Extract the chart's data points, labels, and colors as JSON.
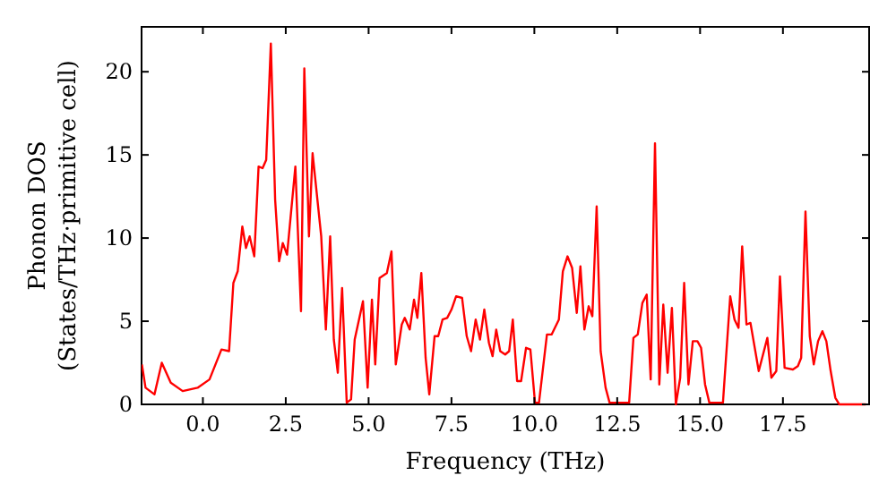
{
  "chart_data": {
    "type": "line",
    "xlabel": "Frequency (THz)",
    "ylabel": "Phonon DOS\n(States/THz·primitive cell)",
    "xlim": [
      -1.85,
      20.1
    ],
    "ylim": [
      0,
      22.7
    ],
    "xticks": [
      {
        "value": 0,
        "label": "0.0"
      },
      {
        "value": 2.5,
        "label": "2.5"
      },
      {
        "value": 5,
        "label": "5.0"
      },
      {
        "value": 7.5,
        "label": "7.5"
      },
      {
        "value": 10,
        "label": "10.0"
      },
      {
        "value": 12.5,
        "label": "12.5"
      },
      {
        "value": 15,
        "label": "15.0"
      },
      {
        "value": 17.5,
        "label": "17.5"
      }
    ],
    "yticks": [
      0,
      5,
      10,
      15,
      20
    ],
    "grid": false,
    "marker": "none",
    "line_style": "solid",
    "x": [
      -1.84,
      -1.73,
      -1.46,
      -1.24,
      -0.97,
      -0.61,
      -0.16,
      0.2,
      0.56,
      0.79,
      0.92,
      1.05,
      1.19,
      1.3,
      1.41,
      1.55,
      1.68,
      1.8,
      1.91,
      2.05,
      2.18,
      2.3,
      2.41,
      2.54,
      2.79,
      2.96,
      3.06,
      3.2,
      3.31,
      3.57,
      3.71,
      3.84,
      3.95,
      4.07,
      4.2,
      4.34,
      4.47,
      4.58,
      4.83,
      4.97,
      5.1,
      5.2,
      5.33,
      5.55,
      5.69,
      5.82,
      6.0,
      6.09,
      6.24,
      6.37,
      6.47,
      6.59,
      6.72,
      6.83,
      6.99,
      7.1,
      7.23,
      7.37,
      7.5,
      7.64,
      7.82,
      7.96,
      8.09,
      8.23,
      8.36,
      8.49,
      8.63,
      8.74,
      8.85,
      8.97,
      9.12,
      9.24,
      9.35,
      9.48,
      9.6,
      9.75,
      9.88,
      10.02,
      10.14,
      10.38,
      10.52,
      10.74,
      10.86,
      11.0,
      11.14,
      11.28,
      11.39,
      11.51,
      11.64,
      11.75,
      11.88,
      12.0,
      12.15,
      12.27,
      12.86,
      12.99,
      13.12,
      13.26,
      13.39,
      13.51,
      13.64,
      13.77,
      13.89,
      14.02,
      14.15,
      14.27,
      14.4,
      14.52,
      14.65,
      14.78,
      14.92,
      15.03,
      15.15,
      15.28,
      15.69,
      15.91,
      16.04,
      16.16,
      16.27,
      16.4,
      16.52,
      16.77,
      17.03,
      17.15,
      17.3,
      17.41,
      17.55,
      17.8,
      17.95,
      18.05,
      18.18,
      18.31,
      18.43,
      18.56,
      18.69,
      18.81,
      18.94,
      19.08,
      19.2,
      20.0
    ],
    "series": [
      {
        "color": "#ff0000",
        "values": [
          2.4,
          1.0,
          0.6,
          2.5,
          1.3,
          0.8,
          1.0,
          1.5,
          3.3,
          3.2,
          7.3,
          8.0,
          10.7,
          9.4,
          10.1,
          8.9,
          14.3,
          14.2,
          14.7,
          21.7,
          12.3,
          8.6,
          9.7,
          9.0,
          14.3,
          5.6,
          20.2,
          10.1,
          15.1,
          10.1,
          4.5,
          10.1,
          3.9,
          1.9,
          7.0,
          0.1,
          0.3,
          3.9,
          6.2,
          1.0,
          6.3,
          2.4,
          7.6,
          7.9,
          9.2,
          2.4,
          4.8,
          5.2,
          4.5,
          6.3,
          5.2,
          7.9,
          2.8,
          0.6,
          4.1,
          4.1,
          5.1,
          5.2,
          5.7,
          6.5,
          6.4,
          4.1,
          3.2,
          5.1,
          3.9,
          5.7,
          3.7,
          2.9,
          4.5,
          3.2,
          3.0,
          3.2,
          5.1,
          1.4,
          1.4,
          3.4,
          3.3,
          0.1,
          0.1,
          4.2,
          4.2,
          5.1,
          8.0,
          8.9,
          8.2,
          5.5,
          8.3,
          4.5,
          5.9,
          5.3,
          11.9,
          3.2,
          1.0,
          0.1,
          0.1,
          4.0,
          4.2,
          6.1,
          6.6,
          1.5,
          15.7,
          1.2,
          6.0,
          1.9,
          5.8,
          0.0,
          1.6,
          7.3,
          1.2,
          3.8,
          3.8,
          3.4,
          1.2,
          0.1,
          0.1,
          6.5,
          5.1,
          4.6,
          9.5,
          4.8,
          4.9,
          2.0,
          4.0,
          1.6,
          2.0,
          7.7,
          2.2,
          2.1,
          2.3,
          2.8,
          11.6,
          4.1,
          2.4,
          3.8,
          4.4,
          3.8,
          2.0,
          0.4,
          0.0,
          0.0
        ]
      }
    ]
  }
}
